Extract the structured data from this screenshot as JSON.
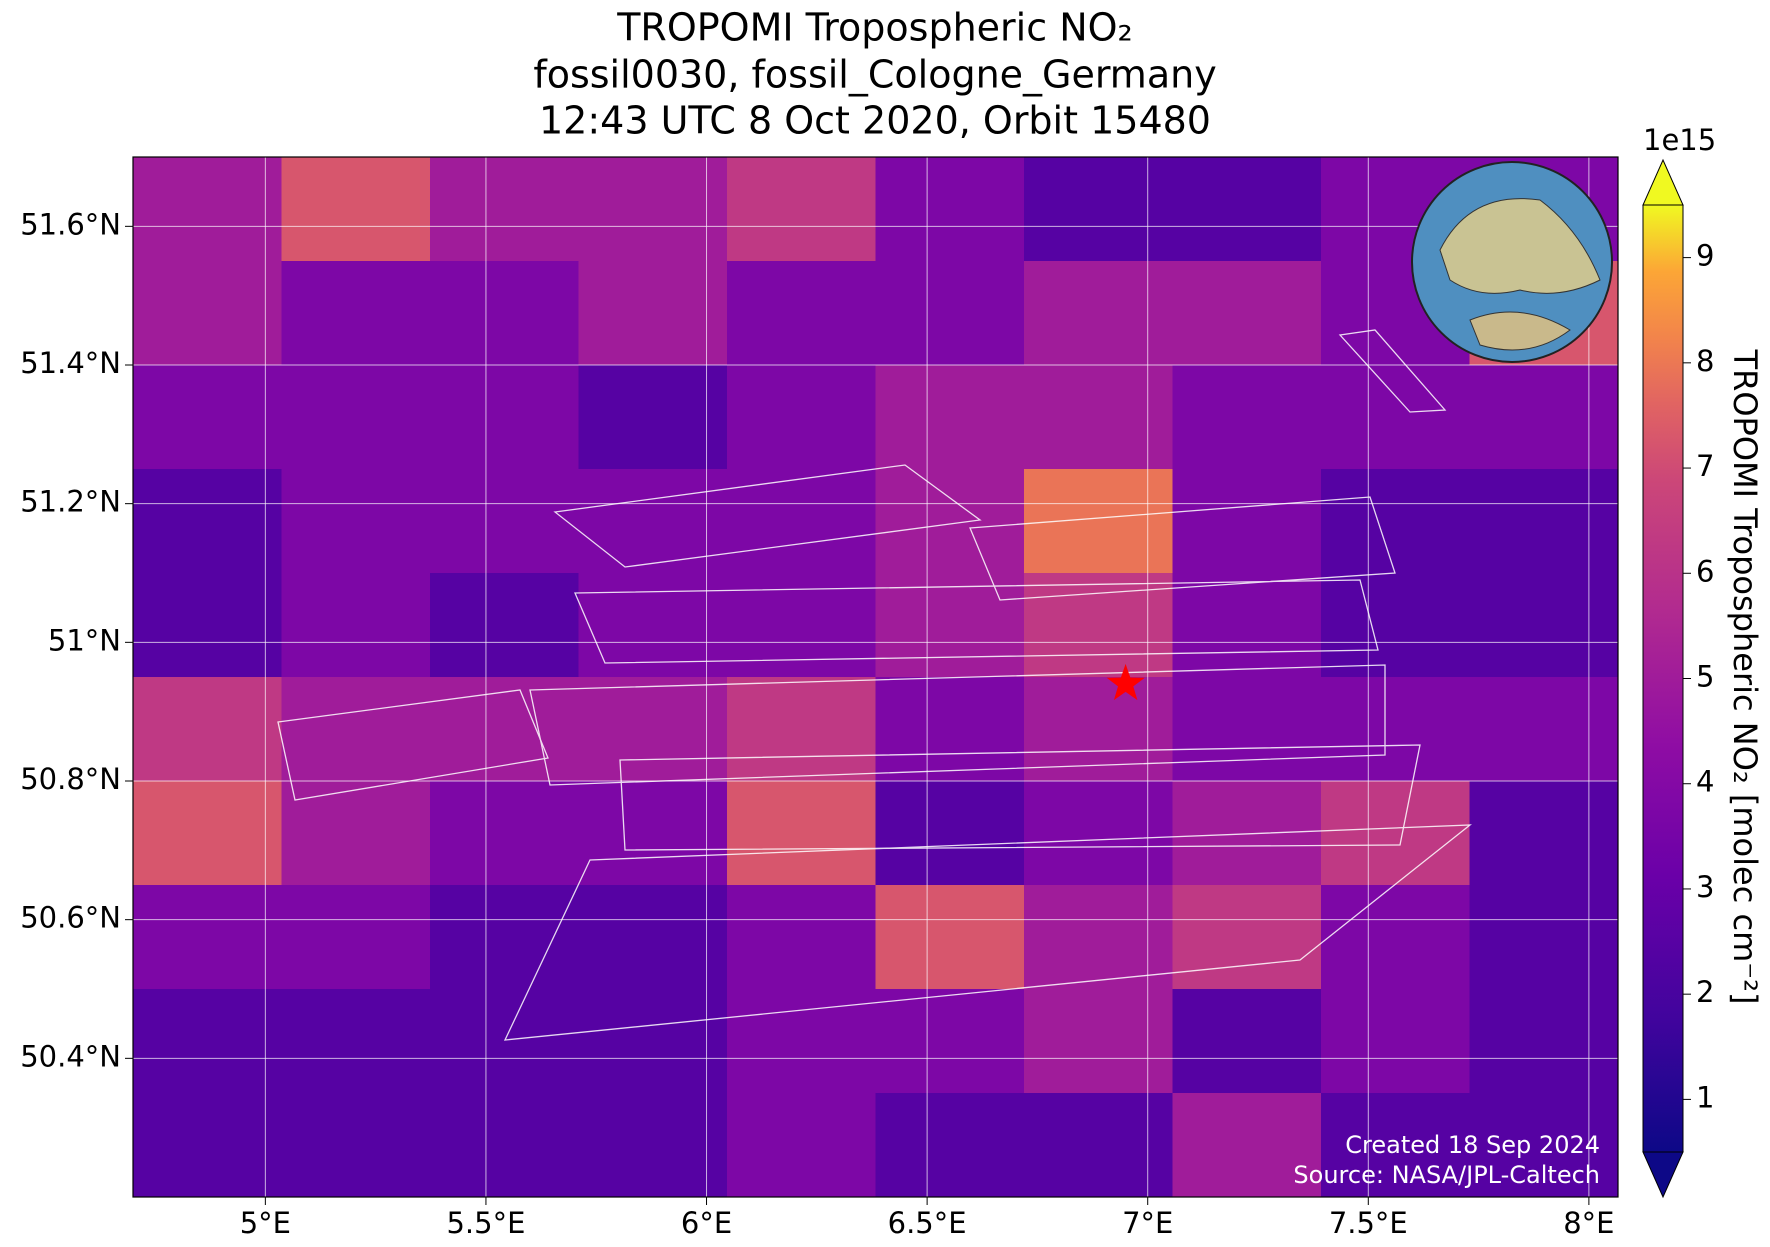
{
  "map": {
    "title": [
      "TROPOMI Tropospheric NO₂",
      "fossil0030, fossil_Cologne_Germany",
      "12:43 UTC 8 Oct 2020, Orbit 15480"
    ],
    "xlim": [
      4.7,
      8.066
    ],
    "ylim": [
      50.2,
      51.7
    ],
    "xticks": [
      {
        "value": 5,
        "label": "5°E"
      },
      {
        "value": 5.5,
        "label": "5.5°E"
      },
      {
        "value": 6,
        "label": "6°E"
      },
      {
        "value": 6.5,
        "label": "6.5°E"
      },
      {
        "value": 7,
        "label": "7°E"
      },
      {
        "value": 7.5,
        "label": "7.5°E"
      },
      {
        "value": 8,
        "label": "8°E"
      }
    ],
    "yticks": [
      {
        "value": 50.4,
        "label": "50.4°N"
      },
      {
        "value": 50.6,
        "label": "50.6°N"
      },
      {
        "value": 50.8,
        "label": "50.8°N"
      },
      {
        "value": 51,
        "label": "51°N"
      },
      {
        "value": 51.2,
        "label": "51.2°N"
      },
      {
        "value": 51.4,
        "label": "51.4°N"
      },
      {
        "value": 51.6,
        "label": "51.6°N"
      }
    ],
    "grid": {
      "values": [
        [
          4,
          6,
          4,
          4,
          5,
          3,
          2,
          2,
          3,
          3
        ],
        [
          4,
          3,
          3,
          4,
          3,
          3,
          4,
          4,
          3,
          6
        ],
        [
          3,
          3,
          3,
          2,
          3,
          4,
          4,
          3,
          3,
          3
        ],
        [
          2,
          3,
          3,
          3,
          3,
          4,
          7,
          3,
          2,
          2
        ],
        [
          2,
          3,
          2,
          3,
          3,
          4,
          5,
          3,
          2,
          2
        ],
        [
          5,
          4,
          4,
          4,
          5,
          3,
          4,
          3,
          3,
          3
        ],
        [
          6,
          4,
          3,
          3,
          6,
          2,
          3,
          4,
          5,
          2
        ],
        [
          3,
          3,
          2,
          2,
          3,
          6,
          4,
          5,
          3,
          2
        ],
        [
          2,
          2,
          2,
          2,
          3,
          3,
          4,
          2,
          3,
          2
        ],
        [
          2,
          2,
          2,
          2,
          3,
          2,
          2,
          4,
          2,
          2
        ]
      ]
    },
    "target": {
      "lon": 6.95,
      "lat": 50.94
    },
    "colorbar": {
      "label": "TROPOMI Tropospheric NO₂ [molec cm⁻²]",
      "exponent": "1e15",
      "lim": [
        0.5,
        9.5
      ],
      "ticks": [
        1,
        2,
        3,
        4,
        5,
        6,
        7,
        8,
        9
      ]
    },
    "credits": [
      "Created 18 Sep 2024",
      "Source: NASA/JPL-Caltech"
    ]
  }
}
